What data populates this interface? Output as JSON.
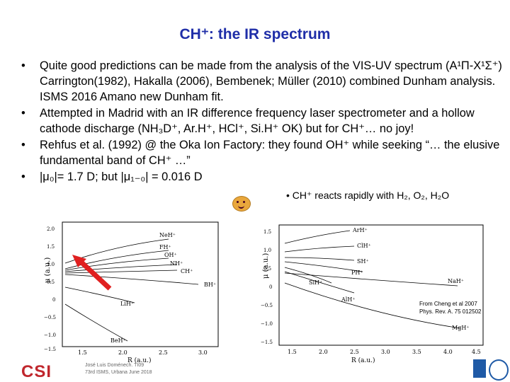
{
  "title": "CH⁺:  the IR spectrum",
  "bullets": [
    {
      "dot": "•",
      "text": "Quite good predictions can be made from the analysis of the VIS-UV spectrum (A¹Π-X¹Σ⁺) Carrington(1982), Hakalla (2006),  Bembenek; Müller (2010) combined Dunham analysis.  ISMS 2016 Amano new Dunham fit."
    },
    {
      "dot": "•",
      "text": "Attempted in Madrid with an IR difference frequency laser spectrometer and a hollow cathode discharge (NH₃D⁺, Ar.H⁺, HCl⁺, Si.H⁺ OK) but for CH⁺…  no joy!"
    },
    {
      "dot": "•",
      "text": "Rehfus et al. (1992) @ the Oka Ion Factory: they found OH⁺ while seeking   “… the elusive fundamental band of CH⁺ …”"
    },
    {
      "dot": "•",
      "text": "|μ₀|= 1.7 D;  but |μ₁₋₀| = 0.016 D"
    }
  ],
  "side_note": "•  CH⁺ reacts rapidly with H₂, O₂, H₂O",
  "chart_left": {
    "ylabel": "μ (a.u.)",
    "xlabel": "R (a.u.)",
    "xticks": [
      "1.5",
      "2.0",
      "2.5",
      "3.0"
    ],
    "yticks": [
      "2.0",
      "1.5",
      "1.0",
      "0.5",
      "0",
      "−0.5",
      "−1.0",
      "−1.5"
    ],
    "labels": [
      "NeH⁺",
      "FH⁺",
      "OH⁺",
      "NH⁺",
      "CH⁺",
      "BH⁺",
      "LiH⁺",
      "BeH⁺"
    ]
  },
  "chart_right": {
    "ylabel": "μ (a.u.)",
    "xlabel": "R (a.u.)",
    "xticks": [
      "1.5",
      "2.0",
      "2.5",
      "3.0",
      "3.5",
      "4.0",
      "4.5"
    ],
    "yticks": [
      "1.5",
      "1.0",
      "0.5",
      "0",
      "−0.5",
      "−1.0",
      "−1.5"
    ],
    "labels": [
      "ArH⁺",
      "ClH⁺",
      "SH⁺",
      "PH⁺",
      "SiH⁺",
      "AlH⁺",
      "NaH⁺",
      "MgH⁺"
    ]
  },
  "reference": [
    "From Cheng et al 2007",
    "Phys. Rev. A. 75 012502"
  ],
  "footer": [
    "José Luis Doménech. TI09",
    "73rd ISMS,  Urbana June 2018"
  ],
  "logo": "CSI",
  "colors": {
    "title": "#1f2ea8",
    "arrow": "#e02020",
    "logo": "#c0272d"
  }
}
